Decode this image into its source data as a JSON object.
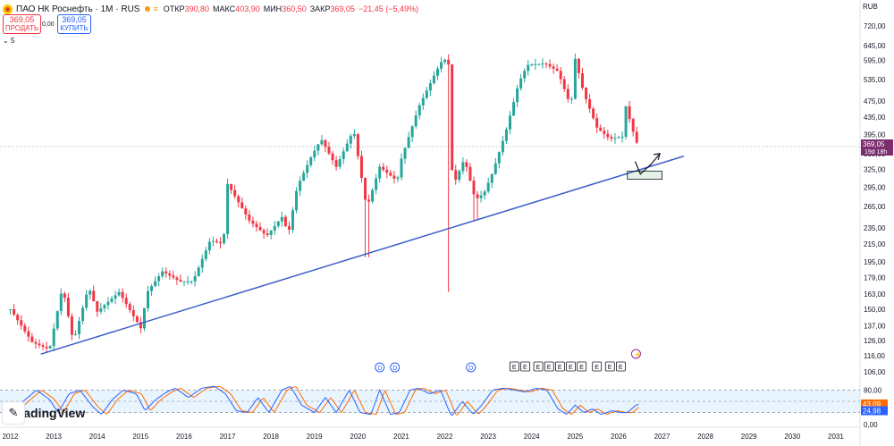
{
  "header": {
    "title": "ПАО НК Роснефть · 1М · RUS",
    "ohlc": [
      {
        "label": "ОТКР",
        "value": "390,80"
      },
      {
        "label": "МАКС",
        "value": "403,90"
      },
      {
        "label": "МИН",
        "value": "360,50"
      },
      {
        "label": "ЗАКР",
        "value": "369,05"
      }
    ],
    "change": "−21,45 (−5,49%)"
  },
  "trade": {
    "sell_price": "369,05",
    "sell_label": "ПРОДАТЬ",
    "spread": "0,00",
    "buy_price": "369,05",
    "buy_label": "КУПИТЬ"
  },
  "indicators_collapsed": "5",
  "currency": "RUB",
  "last_price": {
    "value": "369,05",
    "countdown": "19d 18h"
  },
  "branding": "TradingView",
  "colors": {
    "up": "#26a69a",
    "down": "#f23645",
    "trend": "#3a5fc8",
    "k_line": "#2962ff",
    "d_line": "#ff6d00"
  },
  "chart_data": {
    "type": "candlestick",
    "scale": "log",
    "x_ticks": [
      "2012",
      "2013",
      "2014",
      "2015",
      "2016",
      "2017",
      "2018",
      "2019",
      "2020",
      "2021",
      "2022",
      "2023",
      "2024",
      "2025",
      "2026",
      "2027",
      "2028",
      "2029",
      "2030",
      "2031"
    ],
    "y_ticks": [
      "720,00",
      "645,00",
      "595,00",
      "535,00",
      "475,00",
      "435,00",
      "395,00",
      "355,00",
      "325,00",
      "295,00",
      "265,00",
      "235,00",
      "215,00",
      "195,00",
      "179,00",
      "163,00",
      "150,00",
      "137,00",
      "126,00",
      "116,00",
      "106,00"
    ],
    "y_tick_values": [
      720,
      645,
      595,
      535,
      475,
      435,
      395,
      355,
      325,
      295,
      265,
      235,
      215,
      195,
      179,
      163,
      150,
      137,
      126,
      116,
      106
    ],
    "ylim": [
      104,
      760
    ],
    "anchors": [
      [
        2012.0,
        150
      ],
      [
        2012.5,
        125
      ],
      [
        2012.9,
        120
      ],
      [
        2013.2,
        170
      ],
      [
        2013.45,
        125
      ],
      [
        2013.8,
        170
      ],
      [
        2014.0,
        148
      ],
      [
        2014.5,
        165
      ],
      [
        2015.0,
        135
      ],
      [
        2015.15,
        165
      ],
      [
        2015.5,
        185
      ],
      [
        2015.9,
        175
      ],
      [
        2016.2,
        175
      ],
      [
        2016.6,
        220
      ],
      [
        2016.9,
        215
      ],
      [
        2017.0,
        300
      ],
      [
        2017.5,
        245
      ],
      [
        2017.9,
        225
      ],
      [
        2018.25,
        250
      ],
      [
        2018.4,
        228
      ],
      [
        2018.6,
        295
      ],
      [
        2018.9,
        345
      ],
      [
        2019.15,
        385
      ],
      [
        2019.5,
        330
      ],
      [
        2019.9,
        405
      ],
      [
        2020.2,
        262
      ],
      [
        2020.5,
        330
      ],
      [
        2020.9,
        305
      ],
      [
        2021.0,
        345
      ],
      [
        2021.4,
        460
      ],
      [
        2021.8,
        560
      ],
      [
        2021.95,
        598
      ],
      [
        2022.08,
        595
      ],
      [
        2022.18,
        295
      ],
      [
        2022.45,
        345
      ],
      [
        2022.7,
        275
      ],
      [
        2022.9,
        285
      ],
      [
        2023.1,
        320
      ],
      [
        2023.4,
        400
      ],
      [
        2023.7,
        525
      ],
      [
        2023.9,
        580
      ],
      [
        2024.3,
        585
      ],
      [
        2024.6,
        560
      ],
      [
        2024.9,
        460
      ],
      [
        2025.0,
        600
      ],
      [
        2025.2,
        495
      ],
      [
        2025.5,
        410
      ],
      [
        2025.8,
        385
      ],
      [
        2026.1,
        390
      ],
      [
        2026.15,
        468
      ],
      [
        2026.35,
        395
      ],
      [
        2026.45,
        369
      ]
    ],
    "spikes": [
      {
        "x": 2020.2,
        "low": 200
      },
      {
        "x": 2022.1,
        "low": 165
      },
      {
        "x": 2022.7,
        "low": 245
      }
    ],
    "trendline": {
      "from": [
        2012.7,
        117
      ],
      "to": [
        2027.5,
        350
      ]
    },
    "support_box": {
      "x": [
        2026.2,
        2027.0
      ],
      "y": [
        308,
        322
      ]
    },
    "projection": {
      "points": [
        [
          2026.5,
          317
        ],
        [
          2026.75,
          335
        ],
        [
          2026.95,
          355
        ]
      ],
      "note": "V-shaped arrow up"
    },
    "current_price_line": 369.05,
    "event_markers": {
      "D": [
        2020.5,
        2020.85,
        2022.6
      ],
      "E": [
        2023.6,
        2023.85,
        2024.15,
        2024.4,
        2024.65,
        2024.9,
        2025.15,
        2025.5,
        2025.8,
        2026.05
      ],
      "lightning": 2026.4
    },
    "oscillator": {
      "name": "Stochastic",
      "levels": [
        80,
        50,
        20
      ],
      "y_ticks": [
        "80,00",
        "0,00"
      ],
      "k_last": "43,09",
      "d_last": "24,98",
      "k_anchors": [
        [
          2012.0,
          20
        ],
        [
          2012.3,
          50
        ],
        [
          2012.6,
          80
        ],
        [
          2012.9,
          55
        ],
        [
          2013.1,
          20
        ],
        [
          2013.35,
          70
        ],
        [
          2013.6,
          80
        ],
        [
          2013.9,
          35
        ],
        [
          2014.1,
          15
        ],
        [
          2014.35,
          55
        ],
        [
          2014.6,
          80
        ],
        [
          2014.9,
          70
        ],
        [
          2015.1,
          25
        ],
        [
          2015.35,
          55
        ],
        [
          2015.6,
          75
        ],
        [
          2015.8,
          85
        ],
        [
          2016.1,
          60
        ],
        [
          2016.4,
          85
        ],
        [
          2016.7,
          90
        ],
        [
          2016.95,
          70
        ],
        [
          2017.2,
          25
        ],
        [
          2017.45,
          20
        ],
        [
          2017.7,
          60
        ],
        [
          2017.95,
          20
        ],
        [
          2018.25,
          80
        ],
        [
          2018.45,
          90
        ],
        [
          2018.7,
          40
        ],
        [
          2019.0,
          20
        ],
        [
          2019.25,
          60
        ],
        [
          2019.5,
          20
        ],
        [
          2019.8,
          80
        ],
        [
          2020.05,
          20
        ],
        [
          2020.3,
          15
        ],
        [
          2020.5,
          80
        ],
        [
          2020.75,
          15
        ],
        [
          2020.95,
          20
        ],
        [
          2021.2,
          80
        ],
        [
          2021.4,
          85
        ],
        [
          2021.65,
          70
        ],
        [
          2021.9,
          80
        ],
        [
          2022.15,
          10
        ],
        [
          2022.4,
          50
        ],
        [
          2022.65,
          15
        ],
        [
          2022.85,
          40
        ],
        [
          2023.1,
          80
        ],
        [
          2023.35,
          85
        ],
        [
          2023.6,
          80
        ],
        [
          2023.85,
          75
        ],
        [
          2024.1,
          85
        ],
        [
          2024.35,
          80
        ],
        [
          2024.6,
          30
        ],
        [
          2024.8,
          15
        ],
        [
          2025.0,
          40
        ],
        [
          2025.2,
          20
        ],
        [
          2025.4,
          30
        ],
        [
          2025.6,
          15
        ],
        [
          2025.85,
          25
        ],
        [
          2026.05,
          20
        ],
        [
          2026.2,
          20
        ],
        [
          2026.4,
          40
        ],
        [
          2026.5,
          43
        ]
      ],
      "d_lag_years": 0.12
    }
  }
}
